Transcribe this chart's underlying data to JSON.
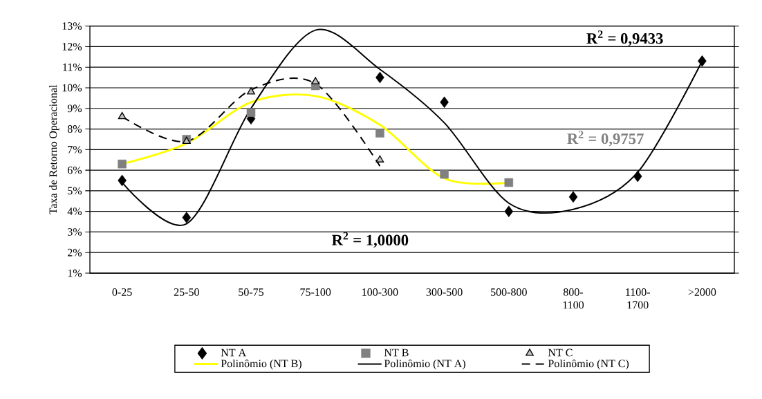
{
  "chart_data": {
    "type": "scatter",
    "ylabel": "Taxa de Retorno Operacional",
    "categories": [
      "0-25",
      "25-50",
      "50-75",
      "75-100",
      "100-300",
      "300-500",
      "500-800",
      "800-1100",
      "1100-1700",
      ">2000"
    ],
    "ylim": [
      1,
      13
    ],
    "yticks": [
      {
        "value": 1,
        "label": "1%"
      },
      {
        "value": 2,
        "label": "2%"
      },
      {
        "value": 3,
        "label": "3%"
      },
      {
        "value": 4,
        "label": "4%"
      },
      {
        "value": 5,
        "label": "5%"
      },
      {
        "value": 6,
        "label": "6%"
      },
      {
        "value": 7,
        "label": "7%"
      },
      {
        "value": 8,
        "label": "8%"
      },
      {
        "value": 9,
        "label": "9%"
      },
      {
        "value": 10,
        "label": "10%"
      },
      {
        "value": 11,
        "label": "11%"
      },
      {
        "value": 12,
        "label": "12%"
      },
      {
        "value": 13,
        "label": "13%"
      }
    ],
    "grid": "y",
    "legend": "bottom",
    "series": [
      {
        "name": "NT A",
        "marker": "diamond",
        "color": "#000000",
        "values": [
          5.5,
          3.7,
          8.5,
          null,
          10.5,
          9.3,
          4.0,
          4.7,
          5.7,
          11.3
        ]
      },
      {
        "name": "NT B",
        "marker": "square",
        "color": "#808080",
        "values": [
          6.3,
          7.5,
          8.8,
          10.1,
          7.8,
          5.8,
          5.4,
          null,
          null,
          null
        ]
      },
      {
        "name": "NT C",
        "marker": "triangle",
        "color": "#c0c0c0",
        "values": [
          8.6,
          7.4,
          9.8,
          10.3,
          6.5,
          null,
          null,
          null,
          null,
          null
        ]
      },
      {
        "name": "Polinômio (NT B)",
        "type": "line",
        "marker": "none",
        "line_style": "solid",
        "color": "#ffff00",
        "values": [
          6.3,
          7.3,
          9.3,
          9.6,
          8.2,
          5.6,
          5.4,
          null,
          null,
          null
        ]
      },
      {
        "name": "Polinômio (NT A)",
        "type": "line",
        "marker": "none",
        "line_style": "solid",
        "color": "#000000",
        "values": [
          5.4,
          3.4,
          9.0,
          12.8,
          10.9,
          8.3,
          4.4,
          4.1,
          5.9,
          11.3
        ]
      },
      {
        "name": "Polinômio (NT C)",
        "type": "line",
        "marker": "none",
        "line_style": "dashed",
        "color": "#000000",
        "values": [
          8.6,
          7.4,
          9.9,
          10.2,
          6.2,
          null,
          null,
          null,
          null,
          null
        ]
      }
    ],
    "annotations": [
      "R$^{2}$ = 1,0000",
      "R$^{2}$ = 0,9757",
      "R$^{2}$ = 0,9433"
    ]
  }
}
